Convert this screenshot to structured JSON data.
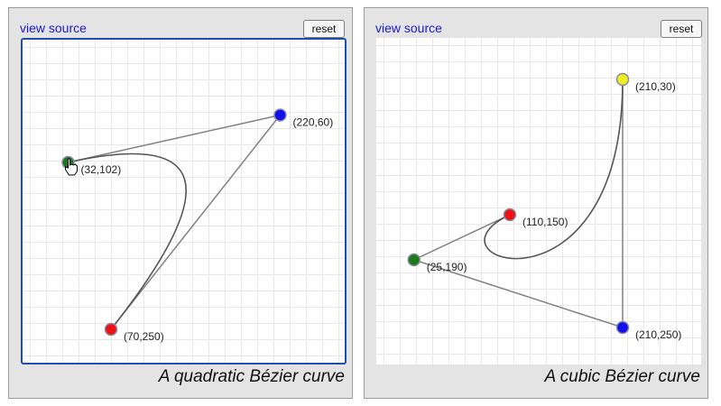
{
  "panels": [
    {
      "view_source": "view source",
      "reset": "reset",
      "caption": "A quadratic Bézier curve",
      "curve_type": "quadratic",
      "points": [
        {
          "role": "start",
          "label": "(32,102)",
          "x": 32,
          "y": 102,
          "color": "#1a7a1a"
        },
        {
          "role": "control",
          "label": "(220,60)",
          "x": 220,
          "y": 60,
          "color": "#1111ee"
        },
        {
          "role": "end",
          "label": "(70,250)",
          "x": 70,
          "y": 250,
          "color": "#ee1111"
        }
      ],
      "active_point": "start"
    },
    {
      "view_source": "view source",
      "reset": "reset",
      "caption": "A cubic Bézier curve",
      "curve_type": "cubic",
      "points": [
        {
          "role": "start",
          "label": "(110,150)",
          "x": 110,
          "y": 150,
          "color": "#ee1111"
        },
        {
          "role": "control1",
          "label": "(25,190)",
          "x": 25,
          "y": 190,
          "color": "#1a7a1a"
        },
        {
          "role": "control2",
          "label": "(210,250)",
          "x": 210,
          "y": 250,
          "color": "#1111ee"
        },
        {
          "role": "end",
          "label": "(210,30)",
          "x": 210,
          "y": 30,
          "color": "#eeee22"
        }
      ]
    }
  ],
  "colors": {
    "canvas_border_active": "#1f4fad",
    "grid": "#e8e8e8",
    "curve": "#555555",
    "hull": "#808080"
  }
}
